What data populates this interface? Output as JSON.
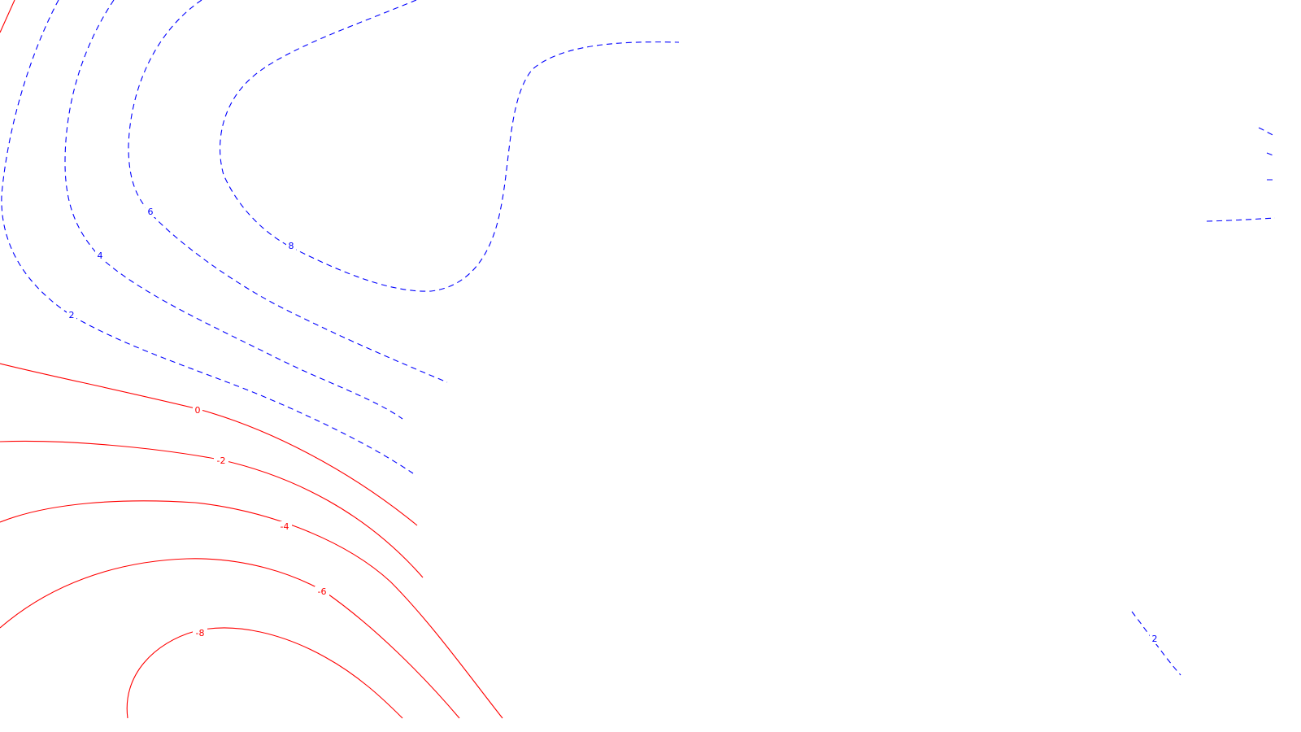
{
  "map": {
    "type": "contour",
    "colors": {
      "positive": "#0000ff",
      "negative": "#ff0000",
      "background": "#ffffff"
    },
    "line_styles": {
      "positive": "dashed",
      "negative": "solid"
    },
    "contour_levels": [
      8,
      6,
      4,
      2,
      0,
      -2,
      -4,
      -6,
      -8
    ],
    "labels": {
      "level_8": "8",
      "level_6": "6",
      "level_4": "4",
      "level_2": "2",
      "level_0": "0",
      "level_neg2": "-2",
      "level_neg4": "-4",
      "level_neg6": "-6",
      "level_neg8": "-8",
      "level_2_east": "2"
    }
  }
}
